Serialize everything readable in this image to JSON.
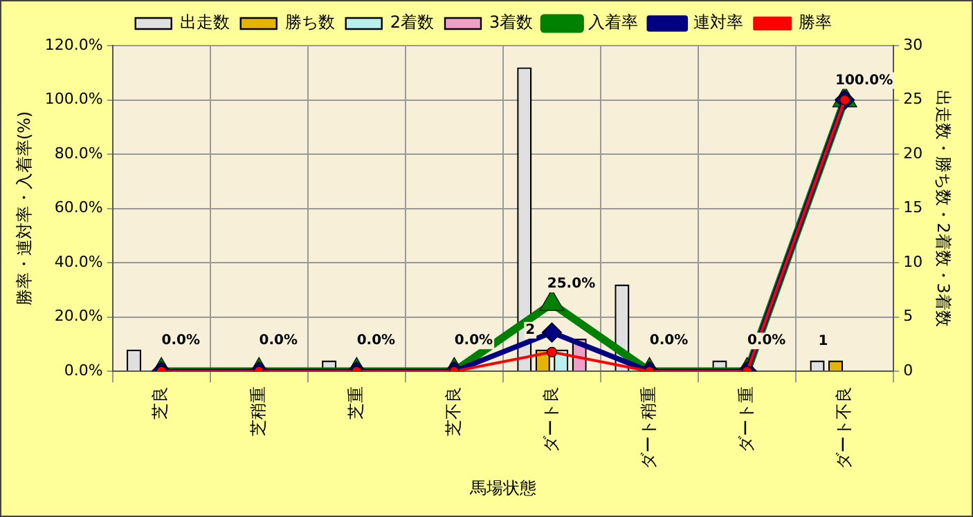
{
  "chart_data": {
    "type": "bar",
    "xlabel": "馬場状態",
    "ylabel": "勝率・連対率・入着率(%)",
    "y2label": "出走数・勝ち数・2着数・3着数",
    "categories": [
      "芝良",
      "芝稍重",
      "芝重",
      "芝不良",
      "ダート良",
      "ダート稍重",
      "ダート重",
      "ダート不良"
    ],
    "series": [
      {
        "name": "出走数",
        "type": "bar",
        "axis": "y2",
        "color": "#e0e0e0",
        "values": [
          2,
          0,
          1,
          0,
          28,
          8,
          1,
          1
        ]
      },
      {
        "name": "勝ち数",
        "type": "bar",
        "axis": "y2",
        "color": "#e6b400",
        "values": [
          0,
          0,
          0,
          0,
          2,
          0,
          0,
          1
        ],
        "value_labels": [
          null,
          null,
          null,
          null,
          "2",
          null,
          null,
          "1"
        ]
      },
      {
        "name": "2着数",
        "type": "bar",
        "axis": "y2",
        "color": "#b8f0f0",
        "values": [
          0,
          0,
          0,
          0,
          2,
          0,
          0,
          0
        ]
      },
      {
        "name": "3着数",
        "type": "bar",
        "axis": "y2",
        "color": "#f0a0c8",
        "values": [
          0,
          0,
          0,
          0,
          3,
          0,
          0,
          0
        ]
      },
      {
        "name": "入着率",
        "type": "line",
        "color": "#008000",
        "marker": "triangle",
        "values": [
          0,
          0,
          0,
          0,
          25,
          0,
          0,
          100
        ],
        "value_labels": [
          "0.0%",
          "0.0%",
          "0.0%",
          "0.0%",
          "25.0%",
          "0.0%",
          "0.0%",
          "100.0%"
        ]
      },
      {
        "name": "連対率",
        "type": "line",
        "color": "#000080",
        "marker": "diamond",
        "values": [
          0,
          0,
          0,
          0,
          14.3,
          0,
          0,
          100
        ]
      },
      {
        "name": "勝率",
        "type": "line",
        "color": "#ff0000",
        "marker": "circle",
        "values": [
          0,
          0,
          0,
          0,
          7.1,
          0,
          0,
          100
        ]
      }
    ],
    "ylim": [
      0,
      120
    ],
    "yticks": [
      {
        "value": 0,
        "label": "0.0%"
      },
      {
        "value": 20,
        "label": "20.0%"
      },
      {
        "value": 40,
        "label": "40.0%"
      },
      {
        "value": 60,
        "label": "60.0%"
      },
      {
        "value": 80,
        "label": "80.0%"
      },
      {
        "value": 100,
        "label": "100.0%"
      },
      {
        "value": 120,
        "label": "120.0%"
      }
    ],
    "y2lim": [
      0,
      30
    ],
    "y2ticks": [
      0,
      5,
      10,
      15,
      20,
      25,
      30
    ],
    "grid": true,
    "legend": "top"
  }
}
